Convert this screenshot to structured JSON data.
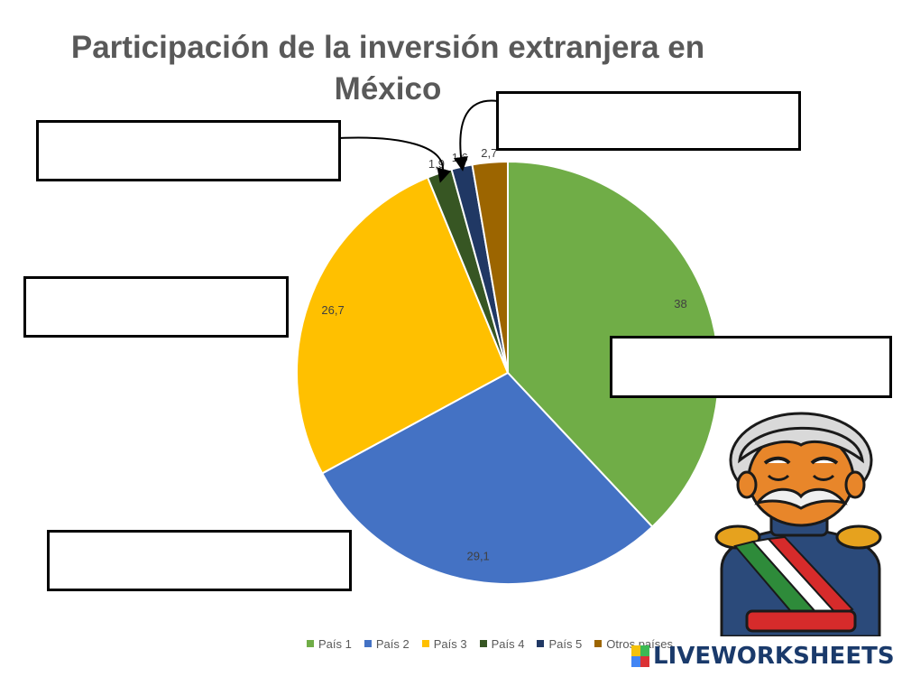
{
  "chart_data": {
    "type": "pie",
    "title": "Participación de la inversión extranjera en México",
    "categories": [
      "País 1",
      "País 2",
      "País 3",
      "País 4",
      "País 5",
      "Otros países"
    ],
    "values": [
      38,
      29.1,
      26.7,
      1.9,
      1.6,
      2.7
    ],
    "value_labels": [
      "38",
      "29,1",
      "26,7",
      "1,9",
      "1,6",
      "2,7"
    ],
    "colors": [
      "#70ad47",
      "#4472c4",
      "#ffc000",
      "#375623",
      "#203864",
      "#9c6500"
    ],
    "start_angle_deg": 0,
    "direction": "clockwise",
    "legend_position": "bottom"
  },
  "brand": {
    "text": "LIVEWORKSHEETS",
    "logo_letters": [
      "L",
      "I",
      "V",
      "E"
    ]
  }
}
